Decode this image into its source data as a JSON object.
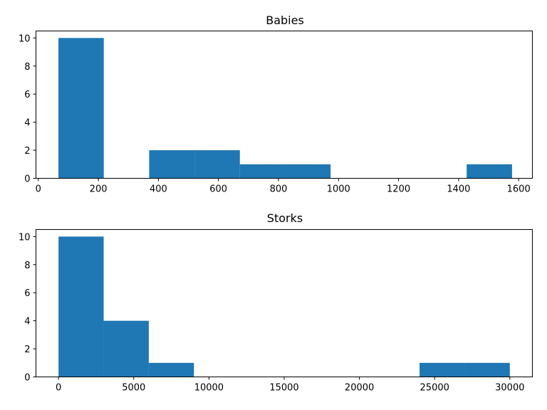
{
  "chart_data": [
    {
      "type": "bar",
      "title": "Babies",
      "xlabel": "",
      "ylabel": "",
      "xlim": [
        -7.8,
        1645.8
      ],
      "ylim": [
        0,
        10.5
      ],
      "xticks": [
        0,
        200,
        400,
        600,
        800,
        1000,
        1200,
        1400,
        1600
      ],
      "yticks": [
        0,
        2,
        4,
        6,
        8,
        10
      ],
      "color": "#1f77b4",
      "bins": [
        {
          "x0": 67,
          "x1": 218.1,
          "value": 10
        },
        {
          "x0": 218.1,
          "x1": 369.2,
          "value": 0
        },
        {
          "x0": 369.2,
          "x1": 520.3,
          "value": 2
        },
        {
          "x0": 520.3,
          "x1": 671.4,
          "value": 2
        },
        {
          "x0": 671.4,
          "x1": 822.5,
          "value": 1
        },
        {
          "x0": 822.5,
          "x1": 973.6,
          "value": 1
        },
        {
          "x0": 973.6,
          "x1": 1124.7,
          "value": 0
        },
        {
          "x0": 1124.7,
          "x1": 1275.8,
          "value": 0
        },
        {
          "x0": 1275.8,
          "x1": 1426.9,
          "value": 0
        },
        {
          "x0": 1426.9,
          "x1": 1578,
          "value": 1
        }
      ]
    },
    {
      "type": "bar",
      "title": "Storks",
      "xlabel": "",
      "ylabel": "",
      "xlim": [
        -1500,
        31500
      ],
      "ylim": [
        0,
        10.5
      ],
      "xticks": [
        0,
        5000,
        10000,
        15000,
        20000,
        25000,
        30000
      ],
      "yticks": [
        0,
        2,
        4,
        6,
        8,
        10
      ],
      "color": "#1f77b4",
      "bins": [
        {
          "x0": 0,
          "x1": 3000,
          "value": 10
        },
        {
          "x0": 3000,
          "x1": 6000,
          "value": 4
        },
        {
          "x0": 6000,
          "x1": 9000,
          "value": 1
        },
        {
          "x0": 9000,
          "x1": 12000,
          "value": 0
        },
        {
          "x0": 12000,
          "x1": 15000,
          "value": 0
        },
        {
          "x0": 15000,
          "x1": 18000,
          "value": 0
        },
        {
          "x0": 18000,
          "x1": 21000,
          "value": 0
        },
        {
          "x0": 21000,
          "x1": 24000,
          "value": 0
        },
        {
          "x0": 24000,
          "x1": 27000,
          "value": 1
        },
        {
          "x0": 27000,
          "x1": 30000,
          "value": 1
        }
      ]
    }
  ]
}
